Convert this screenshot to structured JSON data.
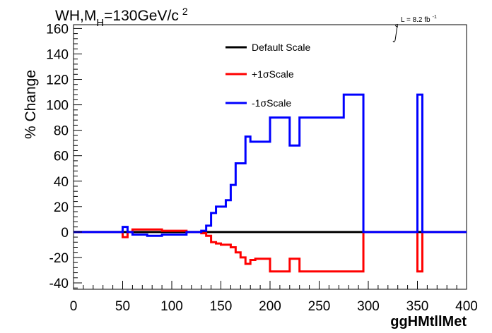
{
  "chart_data": {
    "type": "line",
    "title_main": "WH,M",
    "title_sub": "H",
    "title_rest": "=130GeV/c",
    "title_sup": "2",
    "lumi_label": "L = 8.2 fb",
    "lumi_sup": "-1",
    "xlabel": "ggHMtllMet",
    "ylabel": "% Change",
    "xlim": [
      0,
      400
    ],
    "ylim": [
      -45,
      163
    ],
    "x_ticks": [
      "0",
      "50",
      "100",
      "150",
      "200",
      "250",
      "300",
      "350",
      "400"
    ],
    "y_ticks": [
      "-40",
      "-20",
      "0",
      "20",
      "40",
      "60",
      "80",
      "100",
      "120",
      "140",
      "160"
    ],
    "grid": false,
    "legend_position": "top-center",
    "colors": {
      "default": "#000000",
      "plus": "#ff0000",
      "minus": "#0000ff"
    },
    "bin_edges": [
      0,
      10,
      20,
      30,
      40,
      50,
      55,
      60,
      65,
      70,
      75,
      80,
      85,
      90,
      95,
      100,
      105,
      110,
      115,
      120,
      125,
      130,
      135,
      140,
      145,
      150,
      155,
      160,
      165,
      170,
      175,
      180,
      185,
      190,
      195,
      200,
      205,
      210,
      215,
      220,
      225,
      230,
      235,
      240,
      245,
      250,
      255,
      260,
      265,
      270,
      275,
      280,
      285,
      290,
      295,
      300,
      310,
      320,
      330,
      340,
      350,
      355,
      360,
      370,
      380,
      390,
      400
    ],
    "series": [
      {
        "name": "Default Scale",
        "values": [
          0,
          0,
          0,
          0,
          0,
          0,
          0,
          0,
          0,
          0,
          0,
          0,
          0,
          0,
          0,
          0,
          0,
          0,
          0,
          0,
          0,
          0,
          0,
          0,
          0,
          0,
          0,
          0,
          0,
          0,
          0,
          0,
          0,
          0,
          0,
          0,
          0,
          0,
          0,
          0,
          0,
          0,
          0,
          0,
          0,
          0,
          0,
          0,
          0,
          0,
          0,
          0,
          0,
          0,
          0,
          0,
          0,
          0,
          0,
          0,
          0,
          0,
          0,
          0,
          0,
          0
        ]
      },
      {
        "name": "+1σScale",
        "values": [
          0,
          0,
          0,
          0,
          0,
          -4,
          0,
          2,
          2,
          2,
          2,
          2,
          2,
          1,
          1,
          1,
          1,
          1,
          0,
          0,
          0,
          -1,
          -3,
          -8,
          -9,
          -10,
          -10,
          -12,
          -16,
          -20,
          -25,
          -22,
          -21,
          -21,
          -21,
          -31,
          -31,
          -31,
          -31,
          -21,
          -21,
          -31,
          -31,
          -31,
          -31,
          -31,
          -31,
          -31,
          -31,
          -31,
          -31,
          -31,
          -31,
          -31,
          0,
          0,
          0,
          0,
          0,
          0,
          -31,
          0,
          0,
          0,
          0,
          0
        ]
      },
      {
        "name": "-1σScale",
        "values": [
          0,
          0,
          0,
          0,
          0,
          4,
          0,
          -2,
          -2,
          -2,
          -3,
          -3,
          -3,
          -2,
          -2,
          -2,
          -2,
          -2,
          0,
          0,
          0,
          1,
          5,
          15,
          20,
          20,
          25,
          37,
          54,
          54,
          75,
          71,
          71,
          71,
          71,
          90,
          90,
          90,
          90,
          68,
          68,
          90,
          90,
          90,
          90,
          90,
          90,
          90,
          90,
          90,
          108,
          108,
          108,
          108,
          0,
          0,
          0,
          0,
          0,
          0,
          108,
          0,
          0,
          0,
          0,
          0
        ]
      }
    ]
  }
}
